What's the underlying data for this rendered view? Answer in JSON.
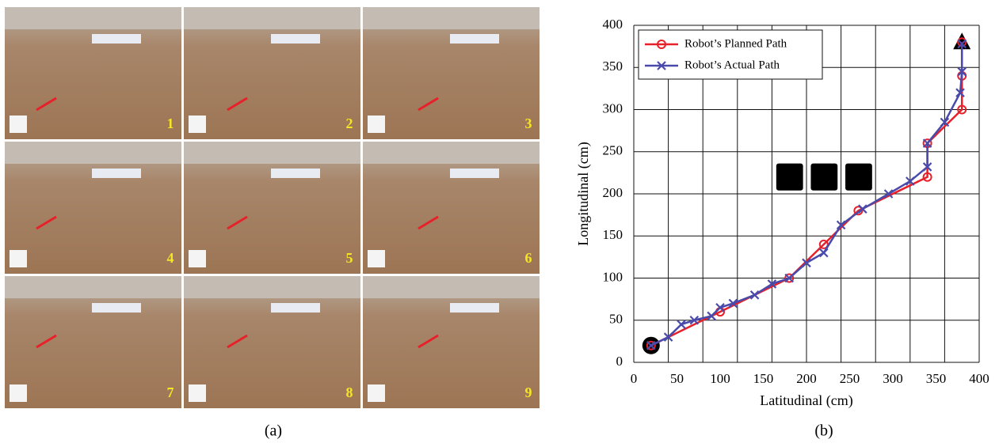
{
  "panels": {
    "labels": [
      "1",
      "2",
      "3",
      "4",
      "5",
      "6",
      "7",
      "8",
      "9"
    ]
  },
  "captions": [
    "(a)",
    "(b)"
  ],
  "chart_data": {
    "type": "line",
    "x_label": "Latitudinal (cm)",
    "y_label": "Longitudinal (cm)",
    "xlim": [
      0,
      400
    ],
    "ylim": [
      0,
      400
    ],
    "xticks": [
      0,
      50,
      100,
      150,
      200,
      250,
      300,
      350,
      400
    ],
    "yticks": [
      0,
      50,
      100,
      150,
      200,
      250,
      300,
      350,
      400
    ],
    "xgrid": [
      0,
      40,
      80,
      120,
      160,
      200,
      240,
      280,
      320,
      360,
      400
    ],
    "grid": true,
    "legend": "top-left",
    "series": [
      {
        "name": "Robot’s Planned Path",
        "color": "#e8202a",
        "marker": "circle",
        "x": [
          20,
          100,
          180,
          220,
          260,
          340,
          340,
          380,
          380,
          380
        ],
        "values": [
          20,
          60,
          100,
          140,
          180,
          220,
          260,
          300,
          340,
          380
        ]
      },
      {
        "name": "Robot’s Actual Path",
        "color": "#4a4aaa",
        "marker": "x",
        "x": [
          20,
          40,
          55,
          70,
          90,
          100,
          115,
          140,
          160,
          180,
          200,
          220,
          240,
          265,
          295,
          320,
          340,
          340,
          360,
          378,
          380,
          380
        ],
        "values": [
          20,
          30,
          45,
          50,
          55,
          65,
          70,
          80,
          93,
          100,
          118,
          130,
          163,
          182,
          200,
          215,
          232,
          260,
          285,
          320,
          345,
          378
        ]
      }
    ],
    "start": {
      "x": 20,
      "y": 20
    },
    "goal": {
      "x": 380,
      "y": 380
    },
    "obstacles": [
      {
        "x": [
          165,
          196
        ],
        "y": [
          204,
          236
        ]
      },
      {
        "x": [
          205,
          236
        ],
        "y": [
          204,
          236
        ]
      },
      {
        "x": [
          245,
          276
        ],
        "y": [
          204,
          236
        ]
      }
    ]
  }
}
